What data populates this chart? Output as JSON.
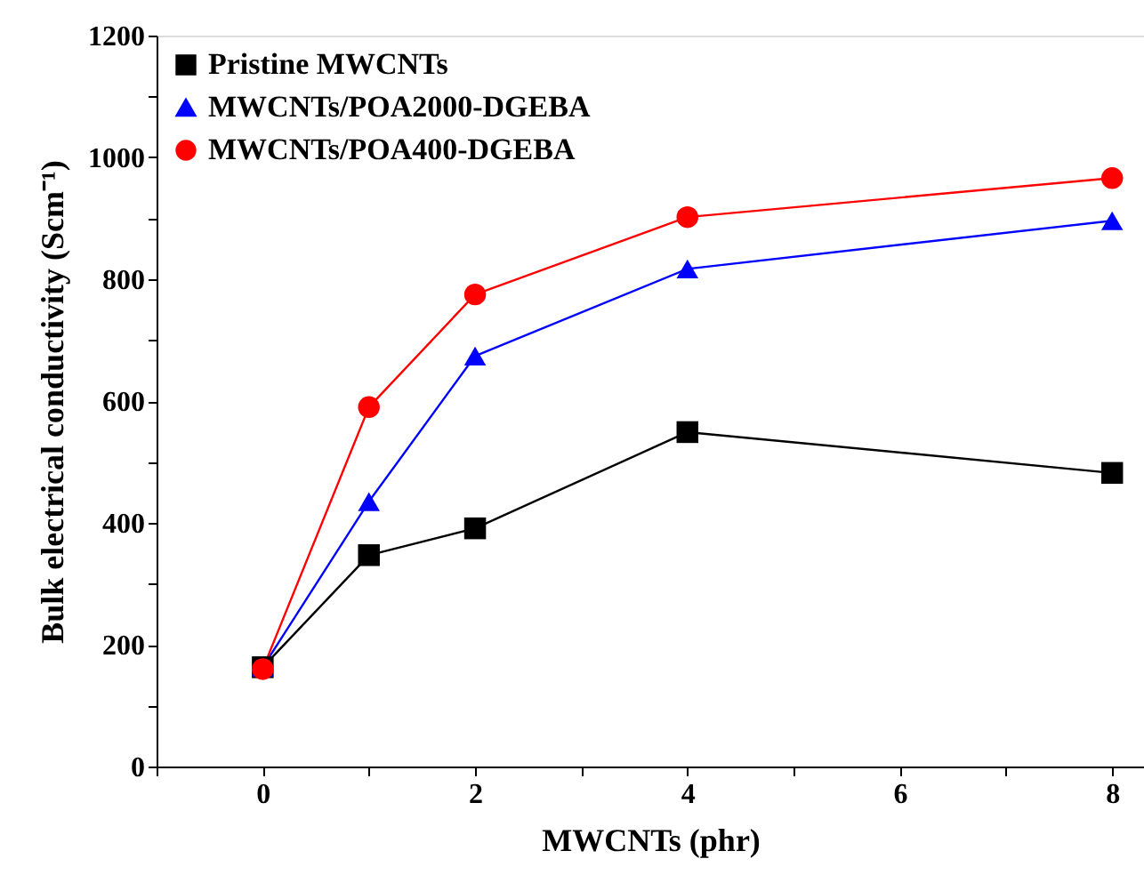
{
  "chart_data": {
    "type": "line",
    "xlabel": "MWCNTs (phr)",
    "ylabel": "Bulk electrical conductivity (Scm⁻¹)",
    "x": [
      0,
      1,
      2,
      4,
      8
    ],
    "series": [
      {
        "name": "Pristine MWCNTs",
        "color": "#000000",
        "marker": "square",
        "values": [
          163,
          347,
          391,
          549,
          482
        ]
      },
      {
        "name": "MWCNTs/POA2000-DGEBA",
        "color": "#0000ff",
        "marker": "triangle",
        "values": [
          163,
          435,
          674,
          817,
          896
        ]
      },
      {
        "name": "MWCNTs/POA400-DGEBA",
        "color": "#ff0000",
        "marker": "circle",
        "values": [
          160,
          590,
          775,
          902,
          966
        ]
      }
    ],
    "xlim": [
      -1,
      8.3
    ],
    "ylim": [
      0,
      1200
    ],
    "xticks": [
      {
        "value": -1,
        "label": null
      },
      0,
      {
        "value": 1,
        "label": null
      },
      2,
      {
        "value": 3,
        "label": null
      },
      4,
      {
        "value": 5,
        "label": null
      },
      6,
      {
        "value": 7,
        "label": null
      },
      8
    ],
    "yticks": [
      0,
      {
        "value": 100,
        "label": null
      },
      200,
      {
        "value": 300,
        "label": null
      },
      400,
      {
        "value": 500,
        "label": null
      },
      600,
      {
        "value": 700,
        "label": null
      },
      800,
      {
        "value": 900,
        "label": null
      },
      1000,
      {
        "value": 1100,
        "label": null
      },
      1200
    ],
    "grid": false,
    "legend": "top left",
    "line_style": "solid"
  }
}
